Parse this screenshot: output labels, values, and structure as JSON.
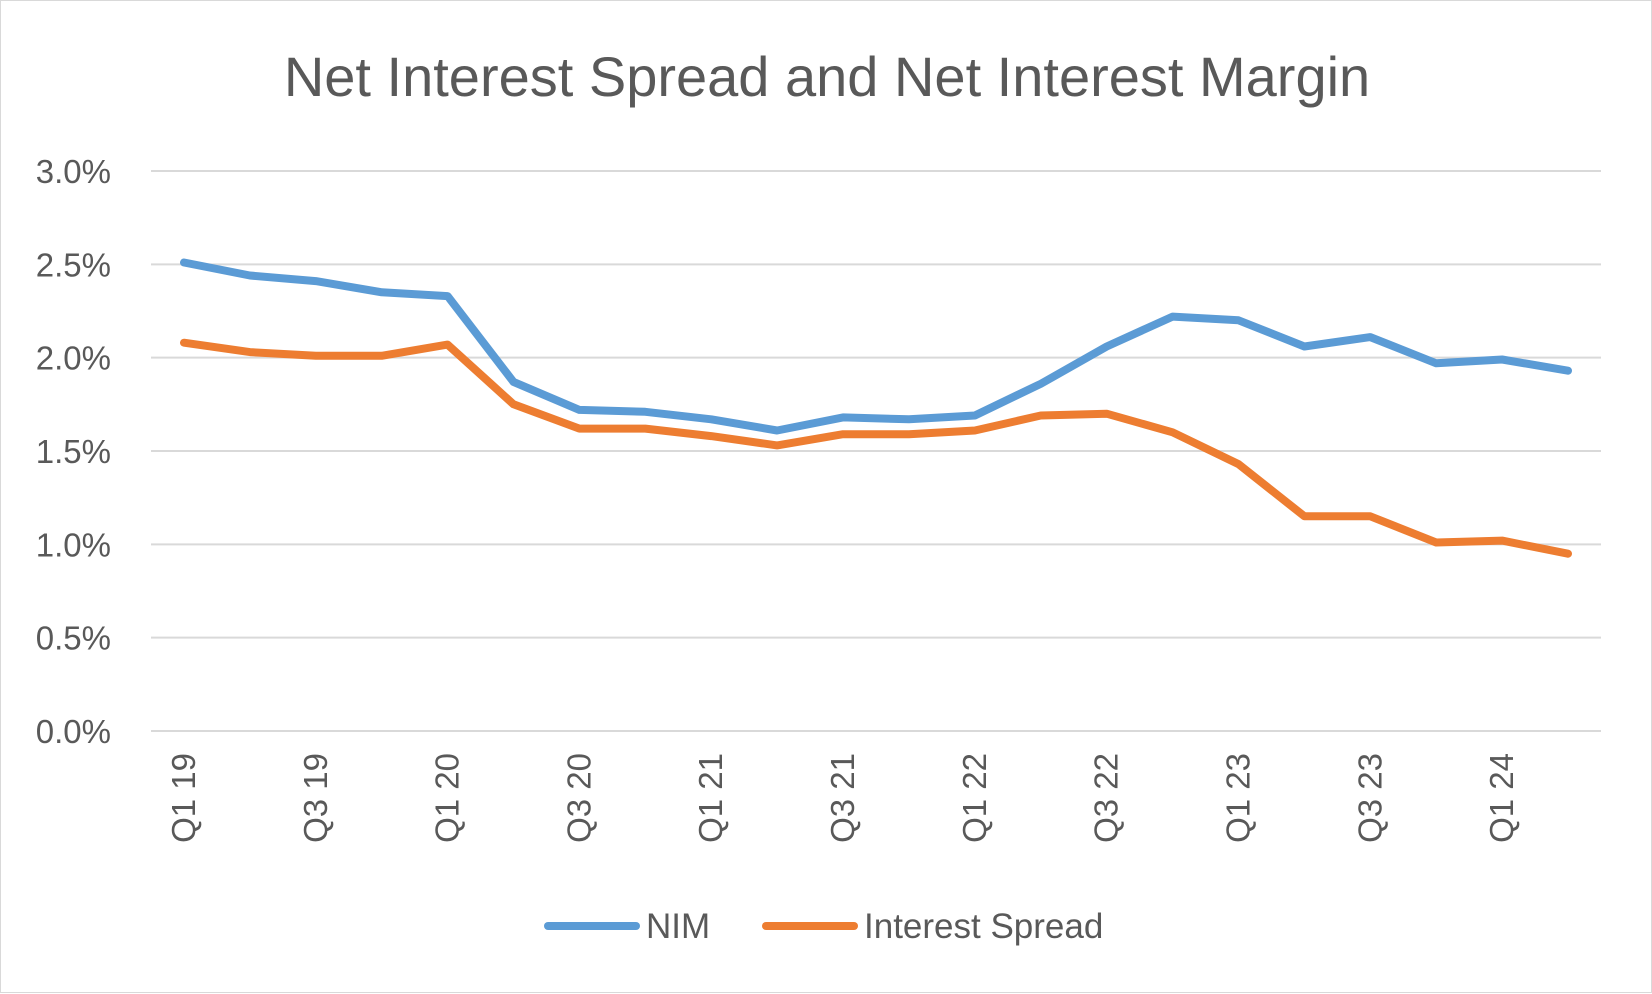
{
  "chart_data": {
    "type": "line",
    "title": "Net Interest Spread and Net Interest Margin",
    "xlabel": "",
    "ylabel": "",
    "categories": [
      "Q1 19",
      "Q2 19",
      "Q3 19",
      "Q4 19",
      "Q1 20",
      "Q2 20",
      "Q3 20",
      "Q4 20",
      "Q1 21",
      "Q2 21",
      "Q3 21",
      "Q4 21",
      "Q1 22",
      "Q2 22",
      "Q3 22",
      "Q4 22",
      "Q1 23",
      "Q2 23",
      "Q3 23",
      "Q4 23",
      "Q1 24",
      "Q2 24"
    ],
    "x_tick_labels": [
      "Q1 19",
      "",
      "Q3 19",
      "",
      "Q1 20",
      "",
      "Q3 20",
      "",
      "Q1 21",
      "",
      "Q3 21",
      "",
      "Q1 22",
      "",
      "Q3 22",
      "",
      "Q1 23",
      "",
      "Q3 23",
      "",
      "Q1 24",
      ""
    ],
    "ylim": [
      0,
      3.0
    ],
    "y_ticks": [
      0,
      0.5,
      1.0,
      1.5,
      2.0,
      2.5,
      3.0
    ],
    "y_tick_labels": [
      "0.0%",
      "0.5%",
      "1.0%",
      "1.5%",
      "2.0%",
      "2.5%",
      "3.0%"
    ],
    "grid": true,
    "legend_position": "bottom",
    "series": [
      {
        "name": "NIM",
        "color": "#5b9bd5",
        "values": [
          2.51,
          2.44,
          2.41,
          2.35,
          2.33,
          1.87,
          1.72,
          1.71,
          1.67,
          1.61,
          1.68,
          1.67,
          1.69,
          1.86,
          2.06,
          2.22,
          2.2,
          2.06,
          2.11,
          1.97,
          1.99,
          1.93
        ]
      },
      {
        "name": "Interest Spread",
        "color": "#ed7d31",
        "values": [
          2.08,
          2.03,
          2.01,
          2.01,
          2.07,
          1.75,
          1.62,
          1.62,
          1.58,
          1.53,
          1.59,
          1.59,
          1.61,
          1.69,
          1.7,
          1.6,
          1.43,
          1.15,
          1.15,
          1.01,
          1.02,
          0.95
        ]
      }
    ]
  }
}
